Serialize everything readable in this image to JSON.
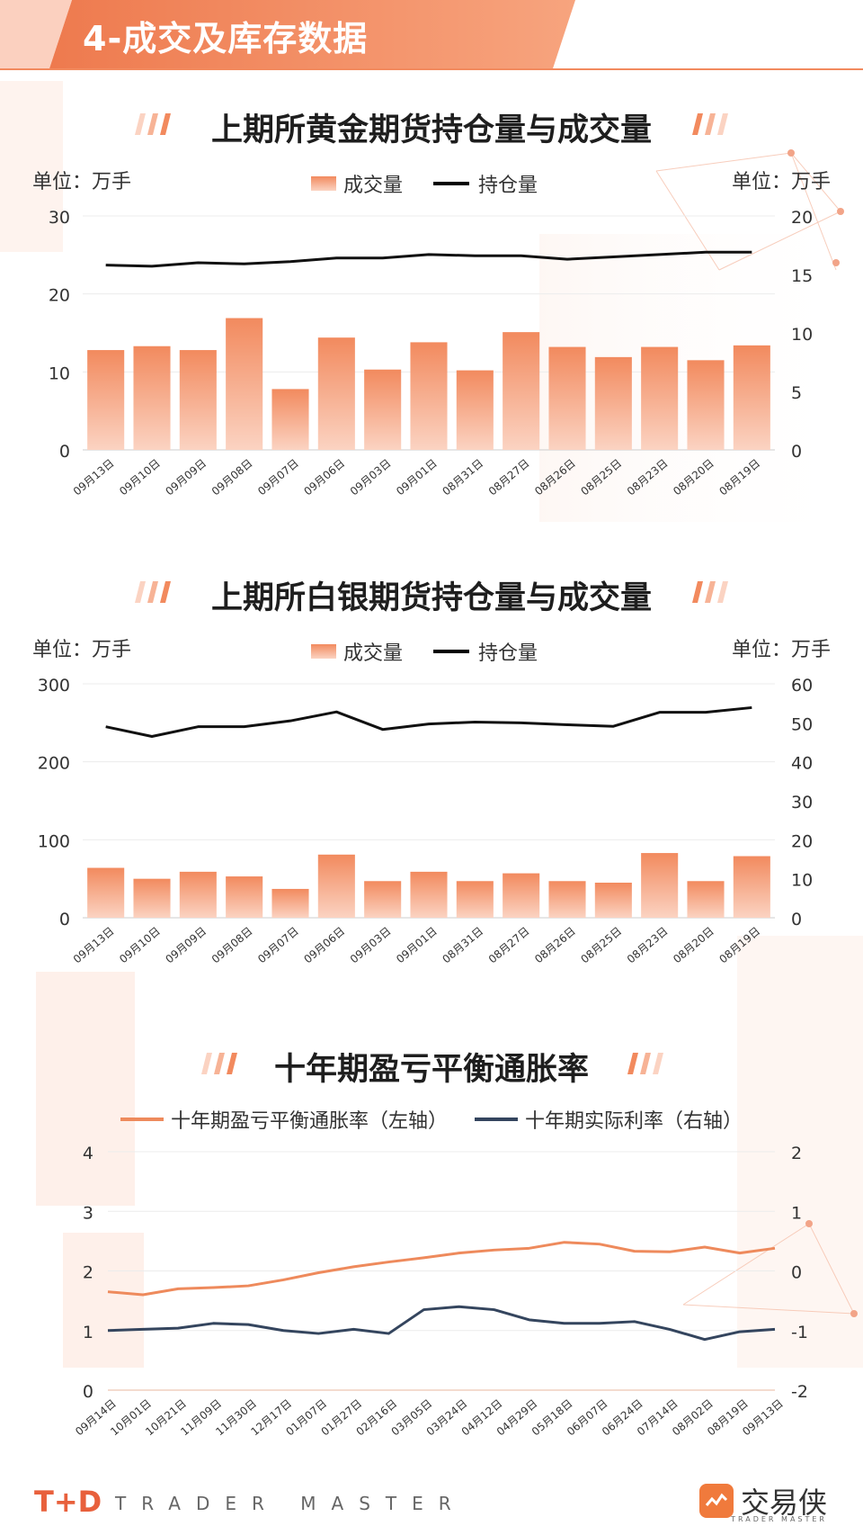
{
  "header": {
    "title": "4-成交及库存数据"
  },
  "footer": {
    "logo": "T+D",
    "tagline": "TRADER MASTER",
    "brand": "交易侠",
    "brand_sub": "TRADER MASTER"
  },
  "colors": {
    "accent": "#f28a5e",
    "bar_top": "#f28a5e",
    "bar_bottom": "#fbd3c2",
    "line_black": "#111111",
    "line_orange": "#ee8a5c",
    "line_navy": "#34455e"
  },
  "gold": {
    "title": "上期所黄金期货持仓量与成交量",
    "unit_left": "单位：万手",
    "unit_right": "单位：万手",
    "legend_bar": "成交量",
    "legend_line": "持仓量"
  },
  "silver": {
    "title": "上期所白银期货持仓量与成交量",
    "unit_left": "单位：万手",
    "unit_right": "单位：万手",
    "legend_bar": "成交量",
    "legend_line": "持仓量"
  },
  "breakeven": {
    "title": "十年期盈亏平衡通胀率",
    "legend_left": "十年期盈亏平衡通胀率（左轴）",
    "legend_right": "十年期实际利率（右轴）"
  },
  "chart_data": [
    {
      "type": "bar",
      "title": "上期所黄金期货持仓量与成交量",
      "categories": [
        "09月13日",
        "09月10日",
        "09月09日",
        "09月08日",
        "09月07日",
        "09月06日",
        "09月03日",
        "09月01日",
        "08月31日",
        "08月27日",
        "08月26日",
        "08月25日",
        "08月23日",
        "08月20日",
        "08月19日"
      ],
      "series": [
        {
          "name": "成交量",
          "type": "bar",
          "axis": "left",
          "values": [
            12.8,
            13.3,
            12.8,
            16.9,
            7.8,
            14.4,
            10.3,
            13.8,
            10.2,
            15.1,
            13.2,
            11.9,
            13.2,
            11.5,
            13.4
          ]
        },
        {
          "name": "持仓量",
          "type": "line",
          "axis": "right",
          "values": [
            15.8,
            15.7,
            16.0,
            15.9,
            16.1,
            16.4,
            16.4,
            16.7,
            16.6,
            16.6,
            16.3,
            16.5,
            16.7,
            16.9,
            16.9
          ]
        }
      ],
      "ylim_left": [
        0,
        30
      ],
      "yticks_left": [
        0,
        10,
        20,
        30
      ],
      "ylim_right": [
        0,
        20
      ],
      "yticks_right": [
        0,
        5,
        10,
        15,
        20
      ]
    },
    {
      "type": "bar",
      "title": "上期所白银期货持仓量与成交量",
      "categories": [
        "09月13日",
        "09月10日",
        "09月09日",
        "09月08日",
        "09月07日",
        "09月06日",
        "09月03日",
        "09月01日",
        "08月31日",
        "08月27日",
        "08月26日",
        "08月25日",
        "08月23日",
        "08月20日",
        "08月19日"
      ],
      "series": [
        {
          "name": "成交量",
          "type": "bar",
          "axis": "left",
          "values": [
            64,
            50,
            59,
            53,
            37,
            81,
            47,
            59,
            47,
            57,
            47,
            45,
            83,
            47,
            79
          ]
        },
        {
          "name": "持仓量",
          "type": "line",
          "axis": "right",
          "values": [
            49.0,
            46.5,
            49.0,
            49.0,
            50.5,
            52.8,
            48.3,
            49.7,
            50.2,
            50.0,
            49.5,
            49.1,
            52.7,
            52.7,
            53.9
          ]
        }
      ],
      "ylim_left": [
        0,
        300
      ],
      "yticks_left": [
        0,
        100,
        200,
        300
      ],
      "ylim_right": [
        0,
        60
      ],
      "yticks_right": [
        0,
        10,
        20,
        30,
        40,
        50,
        60
      ]
    },
    {
      "type": "line",
      "title": "十年期盈亏平衡通胀率",
      "categories": [
        "09月14日",
        "10月01日",
        "10月21日",
        "11月09日",
        "11月30日",
        "12月17日",
        "01月07日",
        "01月27日",
        "02月16日",
        "03月05日",
        "03月24日",
        "04月12日",
        "04月29日",
        "05月18日",
        "06月07日",
        "06月24日",
        "07月14日",
        "08月02日",
        "08月19日",
        "09月13日"
      ],
      "series": [
        {
          "name": "十年期盈亏平衡通胀率（左轴）",
          "axis": "left",
          "values": [
            1.65,
            1.6,
            1.7,
            1.72,
            1.75,
            1.85,
            1.97,
            2.07,
            2.15,
            2.22,
            2.3,
            2.35,
            2.38,
            2.48,
            2.45,
            2.33,
            2.32,
            2.4,
            2.3,
            2.38
          ]
        },
        {
          "name": "十年期实际利率（右轴）",
          "axis": "right",
          "values": [
            -1.0,
            -0.98,
            -0.96,
            -0.88,
            -0.9,
            -1.0,
            -1.05,
            -0.98,
            -1.05,
            -0.65,
            -0.6,
            -0.65,
            -0.82,
            -0.88,
            -0.88,
            -0.85,
            -0.98,
            -1.15,
            -1.02,
            -0.98
          ]
        }
      ],
      "ylim_left": [
        0,
        4
      ],
      "yticks_left": [
        0,
        1,
        2,
        3,
        4
      ],
      "ylim_right": [
        -2,
        2
      ],
      "yticks_right": [
        -2,
        -1,
        0,
        1,
        2
      ]
    }
  ]
}
